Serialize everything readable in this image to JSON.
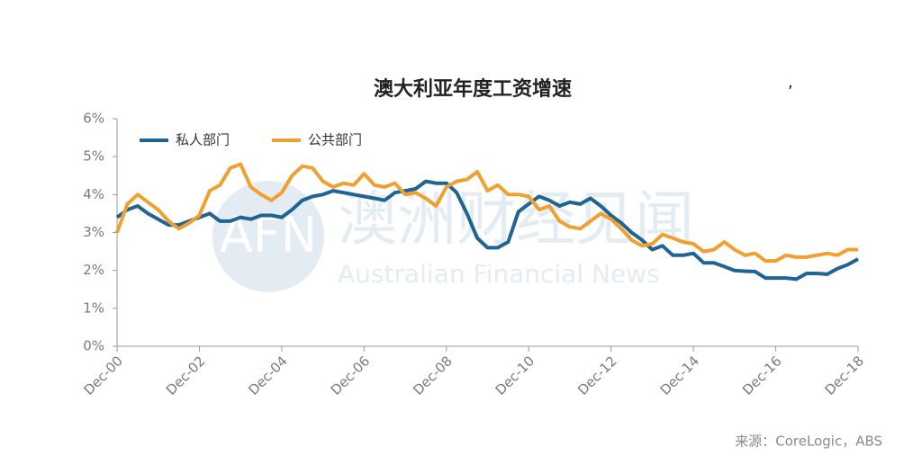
{
  "chart_data": {
    "type": "line",
    "title": "澳大利亚年度工资增速",
    "annotation": ",",
    "source": "来源：CoreLogic，ABS",
    "categories": [
      "Dec-00",
      null,
      null,
      null,
      null,
      null,
      null,
      null,
      "Dec-02",
      null,
      null,
      null,
      null,
      null,
      null,
      null,
      "Dec-04",
      null,
      null,
      null,
      null,
      null,
      null,
      null,
      "Dec-06",
      null,
      null,
      null,
      null,
      null,
      null,
      null,
      "Dec-08",
      null,
      null,
      null,
      null,
      null,
      null,
      null,
      "Dec-10",
      null,
      null,
      null,
      null,
      null,
      null,
      null,
      "Dec-12",
      null,
      null,
      null,
      null,
      null,
      null,
      null,
      "Dec-14",
      null,
      null,
      null,
      null,
      null,
      null,
      null,
      "Dec-16",
      null,
      null,
      null,
      null,
      null,
      null,
      null,
      "Dec-18"
    ],
    "series": [
      {
        "name": "私人部门",
        "color": "#1f6492",
        "values": [
          3.4,
          3.6,
          3.7,
          3.5,
          3.35,
          3.2,
          3.2,
          3.3,
          3.4,
          3.5,
          3.3,
          3.3,
          3.4,
          3.35,
          3.45,
          3.45,
          3.4,
          3.6,
          3.85,
          3.95,
          4.0,
          4.1,
          4.05,
          4.0,
          3.95,
          3.9,
          3.85,
          4.05,
          4.1,
          4.15,
          4.35,
          4.3,
          4.3,
          4.05,
          3.5,
          2.85,
          2.6,
          2.6,
          2.75,
          3.55,
          3.75,
          3.95,
          3.85,
          3.7,
          3.8,
          3.75,
          3.9,
          3.7,
          3.45,
          3.25,
          3.0,
          2.8,
          2.55,
          2.65,
          2.4,
          2.4,
          2.45,
          2.2,
          2.2,
          2.1,
          2.0,
          1.98,
          1.97,
          1.8,
          1.8,
          1.8,
          1.77,
          1.92,
          1.92,
          1.9,
          2.05,
          2.15,
          2.3
        ]
      },
      {
        "name": "公共部门",
        "color": "#f0a030",
        "values": [
          3.0,
          3.75,
          4.0,
          3.8,
          3.6,
          3.3,
          3.1,
          3.25,
          3.45,
          4.1,
          4.25,
          4.7,
          4.8,
          4.2,
          4.0,
          3.85,
          4.05,
          4.5,
          4.75,
          4.7,
          4.35,
          4.2,
          4.3,
          4.25,
          4.55,
          4.25,
          4.2,
          4.3,
          4.0,
          4.05,
          3.9,
          3.7,
          4.2,
          4.35,
          4.4,
          4.6,
          4.1,
          4.25,
          4.0,
          4.0,
          3.95,
          3.6,
          3.7,
          3.3,
          3.15,
          3.1,
          3.3,
          3.5,
          3.35,
          3.1,
          2.8,
          2.65,
          2.7,
          2.95,
          2.85,
          2.75,
          2.7,
          2.5,
          2.55,
          2.75,
          2.55,
          2.4,
          2.45,
          2.25,
          2.25,
          2.4,
          2.35,
          2.35,
          2.4,
          2.45,
          2.4,
          2.55,
          2.55
        ]
      }
    ],
    "ylim": [
      0,
      6
    ],
    "yticks": [
      {
        "value": 0,
        "label": "0%"
      },
      {
        "value": 1,
        "label": "1%"
      },
      {
        "value": 2,
        "label": "2%"
      },
      {
        "value": 3,
        "label": "3%"
      },
      {
        "value": 4,
        "label": "4%"
      },
      {
        "value": 5,
        "label": "5%"
      },
      {
        "value": 6,
        "label": "6%"
      }
    ],
    "legend": "top-left",
    "grid": false
  },
  "watermark": {
    "logo": "AFN",
    "cn": "澳洲财经见闻",
    "en": "Australian Financial News"
  }
}
